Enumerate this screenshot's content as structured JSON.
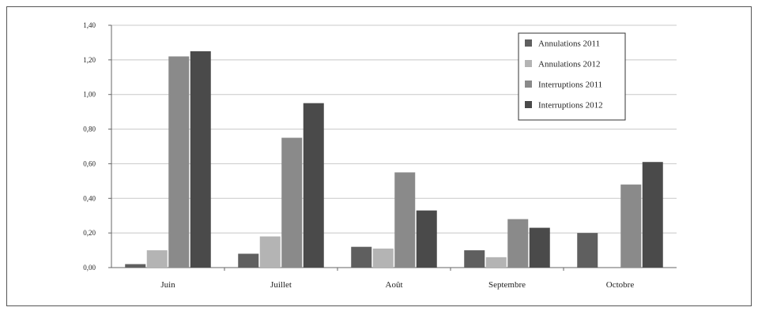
{
  "chart_data": {
    "type": "bar",
    "title": "",
    "xlabel": "",
    "ylabel": "",
    "categories": [
      "Juin",
      "Juillet",
      "Août",
      "Septembre",
      "Octobre"
    ],
    "y_tick_labels": [
      "0,00",
      "0,20",
      "0,40",
      "0,60",
      "0,80",
      "1,00",
      "1,20",
      "1,40"
    ],
    "ylim": [
      0,
      1.4
    ],
    "grid": true,
    "legend_position": "top-right",
    "series": [
      {
        "name": "Annulations 2011",
        "color": "#5f5f5f",
        "values": [
          0.02,
          0.08,
          0.12,
          0.1,
          0.2
        ]
      },
      {
        "name": "Annulations 2012",
        "color": "#b4b4b4",
        "values": [
          0.1,
          0.18,
          0.11,
          0.06,
          0.0
        ]
      },
      {
        "name": "Interruptions 2011",
        "color": "#8a8a8a",
        "values": [
          1.22,
          0.75,
          0.55,
          0.28,
          0.48
        ]
      },
      {
        "name": "Interruptions 2012",
        "color": "#4a4a4a",
        "values": [
          1.25,
          0.95,
          0.33,
          0.23,
          0.61
        ]
      }
    ]
  }
}
